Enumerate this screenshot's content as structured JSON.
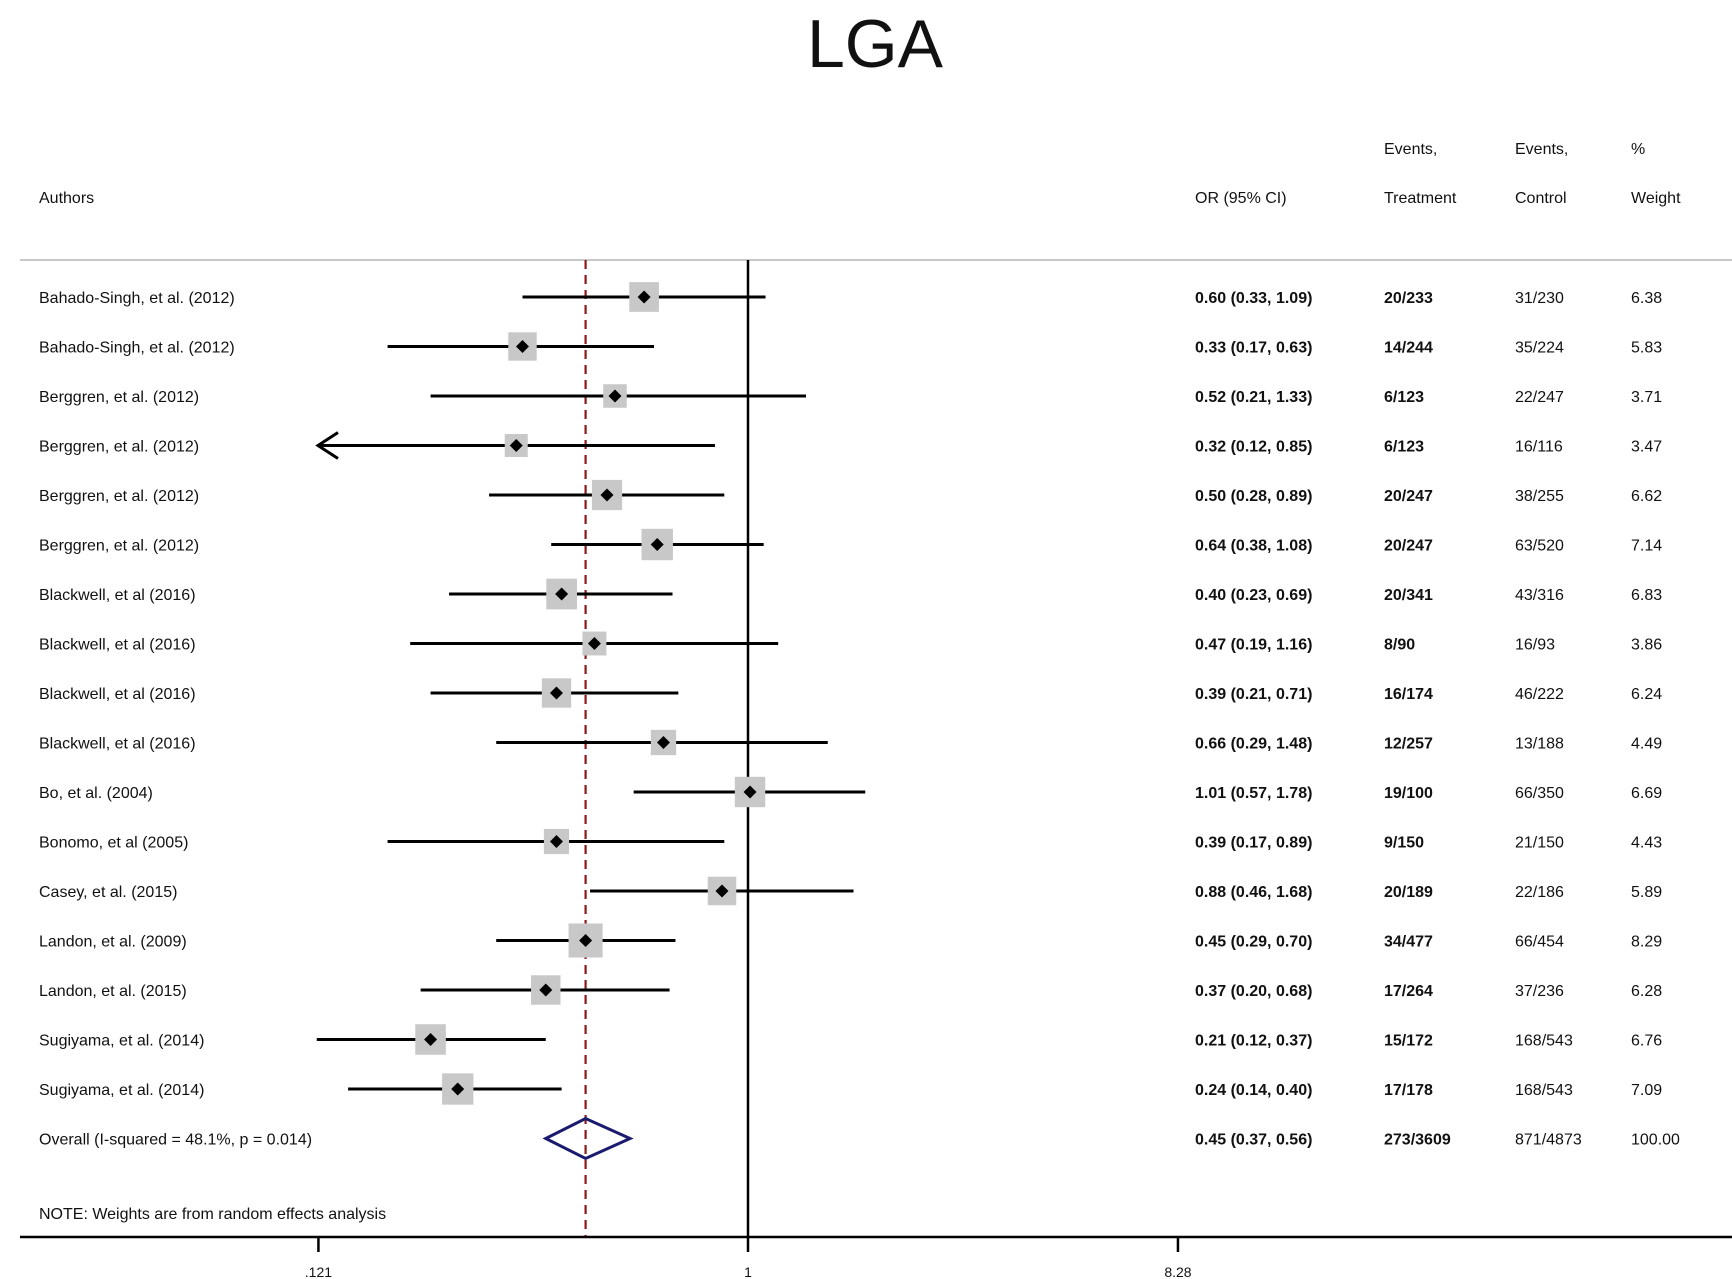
{
  "chart_data": {
    "type": "forest",
    "title": "LGA",
    "x_scale": "log",
    "x_ticks": [
      ".121",
      "1",
      "8.28"
    ],
    "x_tick_values": [
      0.121,
      1,
      8.28
    ],
    "null_line": 1,
    "overall_line": 0.45,
    "headers": {
      "authors": "Authors",
      "or": "OR (95% CI)",
      "events_t_1": "Events,",
      "events_t_2": "Treatment",
      "events_c_1": "Events,",
      "events_c_2": "Control",
      "weight_1": "%",
      "weight_2": "Weight"
    },
    "studies": [
      {
        "author": "Bahado-Singh, et al. (2012)",
        "or": 0.6,
        "lo": 0.33,
        "hi": 1.09,
        "or_text": "0.60 (0.33, 1.09)",
        "treat": "20/233",
        "ctrl": "31/230",
        "weight": "6.38"
      },
      {
        "author": "Bahado-Singh, et al. (2012)",
        "or": 0.33,
        "lo": 0.17,
        "hi": 0.63,
        "or_text": "0.33 (0.17, 0.63)",
        "treat": "14/244",
        "ctrl": "35/224",
        "weight": "5.83"
      },
      {
        "author": "Berggren, et al. (2012)",
        "or": 0.52,
        "lo": 0.21,
        "hi": 1.33,
        "or_text": "0.52 (0.21, 1.33)",
        "treat": "6/123",
        "ctrl": "22/247",
        "weight": "3.71"
      },
      {
        "author": "Berggren, et al. (2012)",
        "or": 0.32,
        "lo": 0.12,
        "hi": 0.85,
        "or_text": "0.32 (0.12, 0.85)",
        "treat": "6/123",
        "ctrl": "16/116",
        "weight": "3.47",
        "arrow_left": true
      },
      {
        "author": "Berggren, et al. (2012)",
        "or": 0.5,
        "lo": 0.28,
        "hi": 0.89,
        "or_text": "0.50 (0.28, 0.89)",
        "treat": "20/247",
        "ctrl": "38/255",
        "weight": "6.62"
      },
      {
        "author": "Berggren, et al. (2012)",
        "or": 0.64,
        "lo": 0.38,
        "hi": 1.08,
        "or_text": "0.64 (0.38, 1.08)",
        "treat": "20/247",
        "ctrl": "63/520",
        "weight": "7.14"
      },
      {
        "author": "Blackwell, et al (2016)",
        "or": 0.4,
        "lo": 0.23,
        "hi": 0.69,
        "or_text": "0.40 (0.23, 0.69)",
        "treat": "20/341",
        "ctrl": "43/316",
        "weight": "6.83"
      },
      {
        "author": "Blackwell, et al (2016)",
        "or": 0.47,
        "lo": 0.19,
        "hi": 1.16,
        "or_text": "0.47 (0.19, 1.16)",
        "treat": "8/90",
        "ctrl": "16/93",
        "weight": "3.86"
      },
      {
        "author": "Blackwell, et al (2016)",
        "or": 0.39,
        "lo": 0.21,
        "hi": 0.71,
        "or_text": "0.39 (0.21, 0.71)",
        "treat": "16/174",
        "ctrl": "46/222",
        "weight": "6.24"
      },
      {
        "author": "Blackwell, et al (2016)",
        "or": 0.66,
        "lo": 0.29,
        "hi": 1.48,
        "or_text": "0.66 (0.29, 1.48)",
        "treat": "12/257",
        "ctrl": "13/188",
        "weight": "4.49"
      },
      {
        "author": "Bo, et al. (2004)",
        "or": 1.01,
        "lo": 0.57,
        "hi": 1.78,
        "or_text": "1.01 (0.57, 1.78)",
        "treat": "19/100",
        "ctrl": "66/350",
        "weight": "6.69"
      },
      {
        "author": "Bonomo, et al (2005)",
        "or": 0.39,
        "lo": 0.17,
        "hi": 0.89,
        "or_text": "0.39 (0.17, 0.89)",
        "treat": "9/150",
        "ctrl": "21/150",
        "weight": "4.43"
      },
      {
        "author": "Casey, et al. (2015)",
        "or": 0.88,
        "lo": 0.46,
        "hi": 1.68,
        "or_text": "0.88 (0.46, 1.68)",
        "treat": "20/189",
        "ctrl": "22/186",
        "weight": "5.89"
      },
      {
        "author": "Landon, et al. (2009)",
        "or": 0.45,
        "lo": 0.29,
        "hi": 0.7,
        "or_text": "0.45 (0.29, 0.70)",
        "treat": "34/477",
        "ctrl": "66/454",
        "weight": "8.29"
      },
      {
        "author": "Landon, et al. (2015)",
        "or": 0.37,
        "lo": 0.2,
        "hi": 0.68,
        "or_text": "0.37 (0.20, 0.68)",
        "treat": "17/264",
        "ctrl": "37/236",
        "weight": "6.28"
      },
      {
        "author": "Sugiyama, et al. (2014)",
        "or": 0.21,
        "lo": 0.12,
        "hi": 0.37,
        "or_text": "0.21 (0.12, 0.37)",
        "treat": "15/172",
        "ctrl": "168/543",
        "weight": "6.76"
      },
      {
        "author": "Sugiyama, et al. (2014)",
        "or": 0.24,
        "lo": 0.14,
        "hi": 0.4,
        "or_text": "0.24 (0.14, 0.40)",
        "treat": "17/178",
        "ctrl": "168/543",
        "weight": "7.09"
      }
    ],
    "overall": {
      "label": "Overall  (I-squared = 48.1%, p = 0.014)",
      "or": 0.45,
      "lo": 0.37,
      "hi": 0.56,
      "or_text": "0.45 (0.37, 0.56)",
      "treat": "273/3609",
      "ctrl": "871/4873",
      "weight": "100.00"
    },
    "note": "NOTE: Weights are from random effects analysis"
  }
}
